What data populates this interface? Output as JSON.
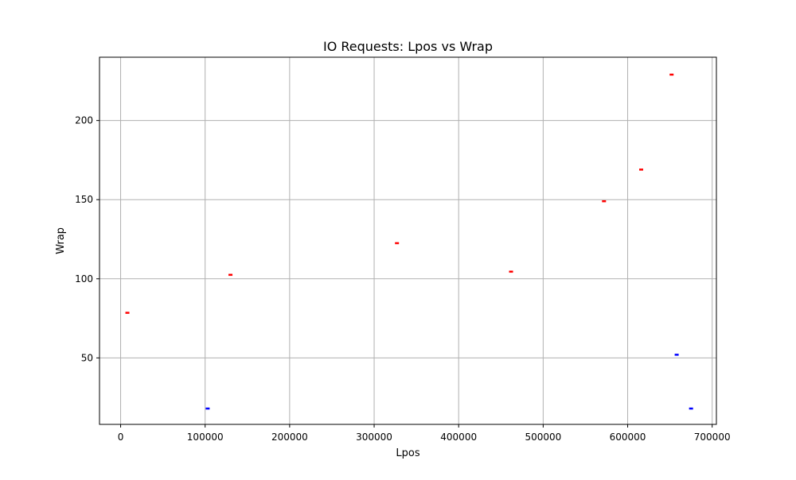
{
  "chart_data": {
    "type": "scatter",
    "title": "IO Requests: Lpos vs Wrap",
    "xlabel": "Lpos",
    "ylabel": "Wrap",
    "xlim": [
      -25000,
      705000
    ],
    "ylim": [
      8,
      240
    ],
    "xticks": [
      0,
      100000,
      200000,
      300000,
      400000,
      500000,
      600000,
      700000
    ],
    "xtick_labels": [
      "0",
      "100000",
      "200000",
      "300000",
      "400000",
      "500000",
      "600000",
      "700000"
    ],
    "yticks": [
      50,
      100,
      150,
      200
    ],
    "ytick_labels": [
      "50",
      "100",
      "150",
      "200"
    ],
    "grid": true,
    "marker": "short horizontal dash",
    "series": [
      {
        "color": "#ff0000",
        "points": [
          {
            "x": 8000,
            "y": 78.5
          },
          {
            "x": 130000,
            "y": 102.5
          },
          {
            "x": 327000,
            "y": 122.5
          },
          {
            "x": 462000,
            "y": 104.5
          },
          {
            "x": 572000,
            "y": 149
          },
          {
            "x": 616000,
            "y": 169
          },
          {
            "x": 652000,
            "y": 229
          }
        ]
      },
      {
        "color": "#0000ff",
        "points": [
          {
            "x": 103000,
            "y": 18
          },
          {
            "x": 658000,
            "y": 52
          },
          {
            "x": 675000,
            "y": 18
          }
        ]
      }
    ]
  }
}
